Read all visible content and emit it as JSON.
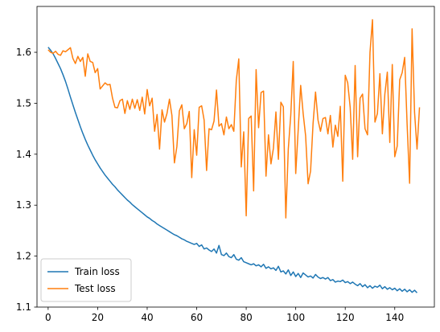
{
  "chart_data": {
    "type": "line",
    "xlim": [
      -4.5,
      156
    ],
    "ylim": [
      1.1,
      1.69
    ],
    "xticks": [
      0,
      20,
      40,
      60,
      80,
      100,
      120,
      140
    ],
    "yticks": [
      1.1,
      1.2,
      1.3,
      1.4,
      1.5,
      1.6
    ],
    "ytick_labels": [
      "1.1",
      "1.2",
      "1.3",
      "1.4",
      "1.5",
      "1.6"
    ],
    "grid": false,
    "legend_position": "lower-left",
    "series": [
      {
        "name": "Train loss",
        "color": "#1f77b4",
        "values": [
          1.61,
          1.604,
          1.597,
          1.588,
          1.578,
          1.568,
          1.556,
          1.543,
          1.528,
          1.512,
          1.497,
          1.482,
          1.468,
          1.454,
          1.441,
          1.429,
          1.418,
          1.408,
          1.398,
          1.389,
          1.381,
          1.373,
          1.366,
          1.359,
          1.353,
          1.347,
          1.341,
          1.336,
          1.33,
          1.325,
          1.32,
          1.315,
          1.31,
          1.306,
          1.301,
          1.297,
          1.293,
          1.289,
          1.285,
          1.281,
          1.277,
          1.274,
          1.27,
          1.267,
          1.263,
          1.26,
          1.257,
          1.254,
          1.251,
          1.248,
          1.245,
          1.242,
          1.24,
          1.237,
          1.234,
          1.232,
          1.229,
          1.227,
          1.225,
          1.223,
          1.225,
          1.219,
          1.222,
          1.214,
          1.216,
          1.212,
          1.209,
          1.214,
          1.206,
          1.221,
          1.203,
          1.201,
          1.206,
          1.199,
          1.197,
          1.203,
          1.194,
          1.192,
          1.197,
          1.189,
          1.187,
          1.185,
          1.183,
          1.185,
          1.181,
          1.183,
          1.179,
          1.184,
          1.176,
          1.179,
          1.175,
          1.177,
          1.172,
          1.18,
          1.169,
          1.171,
          1.165,
          1.173,
          1.162,
          1.169,
          1.16,
          1.166,
          1.158,
          1.167,
          1.163,
          1.159,
          1.161,
          1.157,
          1.164,
          1.159,
          1.156,
          1.158,
          1.155,
          1.158,
          1.152,
          1.154,
          1.149,
          1.151,
          1.15,
          1.153,
          1.148,
          1.15,
          1.146,
          1.149,
          1.145,
          1.142,
          1.146,
          1.14,
          1.144,
          1.138,
          1.142,
          1.137,
          1.141,
          1.139,
          1.143,
          1.136,
          1.14,
          1.135,
          1.138,
          1.134,
          1.137,
          1.132,
          1.136,
          1.131,
          1.135,
          1.13,
          1.134,
          1.129,
          1.133,
          1.128
        ]
      },
      {
        "name": "Test loss",
        "color": "#ff7f0e",
        "values": [
          1.605,
          1.6,
          1.598,
          1.602,
          1.596,
          1.594,
          1.603,
          1.601,
          1.605,
          1.609,
          1.588,
          1.578,
          1.592,
          1.582,
          1.59,
          1.553,
          1.597,
          1.582,
          1.58,
          1.56,
          1.568,
          1.528,
          1.534,
          1.54,
          1.536,
          1.537,
          1.51,
          1.492,
          1.491,
          1.505,
          1.508,
          1.48,
          1.505,
          1.488,
          1.508,
          1.49,
          1.507,
          1.486,
          1.512,
          1.479,
          1.527,
          1.495,
          1.51,
          1.445,
          1.478,
          1.41,
          1.487,
          1.463,
          1.48,
          1.508,
          1.476,
          1.383,
          1.415,
          1.485,
          1.497,
          1.45,
          1.46,
          1.484,
          1.354,
          1.448,
          1.398,
          1.492,
          1.495,
          1.467,
          1.368,
          1.45,
          1.448,
          1.465,
          1.526,
          1.455,
          1.46,
          1.438,
          1.473,
          1.45,
          1.458,
          1.445,
          1.545,
          1.587,
          1.375,
          1.444,
          1.279,
          1.47,
          1.475,
          1.328,
          1.566,
          1.452,
          1.521,
          1.524,
          1.357,
          1.438,
          1.381,
          1.412,
          1.483,
          1.39,
          1.502,
          1.493,
          1.275,
          1.41,
          1.477,
          1.582,
          1.362,
          1.448,
          1.535,
          1.48,
          1.436,
          1.342,
          1.367,
          1.46,
          1.522,
          1.467,
          1.445,
          1.47,
          1.472,
          1.44,
          1.476,
          1.414,
          1.457,
          1.435,
          1.494,
          1.347,
          1.555,
          1.54,
          1.492,
          1.39,
          1.574,
          1.395,
          1.51,
          1.518,
          1.45,
          1.438,
          1.6,
          1.664,
          1.463,
          1.48,
          1.558,
          1.44,
          1.518,
          1.561,
          1.423,
          1.576,
          1.395,
          1.416,
          1.546,
          1.56,
          1.59,
          1.458,
          1.343,
          1.646,
          1.482,
          1.41,
          1.492
        ]
      }
    ]
  }
}
